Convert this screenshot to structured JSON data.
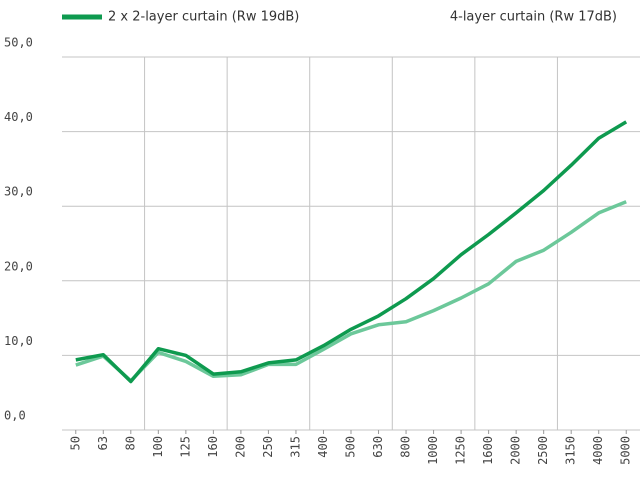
{
  "chart_data": {
    "type": "line",
    "categories": [
      "50",
      "63",
      "80",
      "100",
      "125",
      "160",
      "200",
      "250",
      "315",
      "400",
      "500",
      "630",
      "800",
      "1000",
      "1250",
      "1600",
      "2000",
      "2500",
      "3150",
      "4000",
      "5000"
    ],
    "series": [
      {
        "name": "2 x 2-layer curtain (Rw 19dB)",
        "color": "#0e9a4f",
        "values": [
          9.4,
          10.1,
          6.5,
          10.9,
          10.0,
          7.5,
          7.8,
          9.0,
          9.4,
          11.3,
          13.5,
          15.3,
          17.6,
          20.3,
          23.5,
          26.2,
          29.1,
          32.1,
          35.5,
          39.1,
          41.3
        ]
      },
      {
        "name": "4-layer curtain (Rw 17dB)",
        "color": "#6cc89a",
        "values": [
          8.7,
          9.9,
          6.6,
          10.4,
          9.2,
          7.2,
          7.4,
          8.8,
          8.8,
          10.8,
          12.9,
          14.1,
          14.5,
          16.0,
          17.7,
          19.6,
          22.6,
          24.1,
          26.5,
          29.1,
          30.6
        ]
      }
    ],
    "ylim": [
      0,
      50
    ],
    "yticks": [
      {
        "value": 0,
        "label": "0,0"
      },
      {
        "value": 10,
        "label": "10,0"
      },
      {
        "value": 20,
        "label": "20,0"
      },
      {
        "value": 30,
        "label": "30,0"
      },
      {
        "value": 40,
        "label": "40,0"
      },
      {
        "value": 50,
        "label": "50,0"
      }
    ],
    "grid": true
  }
}
